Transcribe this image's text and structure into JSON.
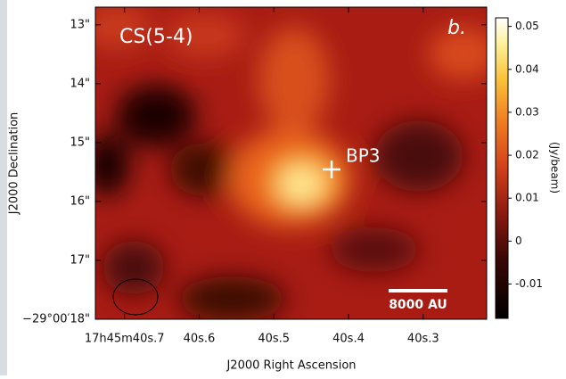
{
  "chart_data": {
    "type": "image",
    "title": "CS(5-4)",
    "panel_label": "b.",
    "source_label": "BP3",
    "scale_bar_label": "8000 AU",
    "x_label": "J2000 Right Ascension",
    "y_label": "J2000 Declination",
    "colorbar_label": "(Jy/beam)",
    "xlim": [
      40.739,
      40.215
    ],
    "xticks": [
      {
        "value": 40.7,
        "label": "17h45m40s.7"
      },
      {
        "value": 40.6,
        "label": "40s.6"
      },
      {
        "value": 40.5,
        "label": "40s.5"
      },
      {
        "value": 40.4,
        "label": "40s.4"
      },
      {
        "value": 40.3,
        "label": "40s.3"
      }
    ],
    "ylim": [
      12.7,
      18.0
    ],
    "yticks": [
      {
        "value": 13,
        "label": "13\""
      },
      {
        "value": 14,
        "label": "14\""
      },
      {
        "value": 15,
        "label": "15\""
      },
      {
        "value": 16,
        "label": "16\""
      },
      {
        "value": 17,
        "label": "17\""
      },
      {
        "value": 18,
        "label": "−29°00′18\""
      }
    ],
    "clim": [
      -0.018,
      0.052
    ],
    "cticks": [
      0.05,
      0.04,
      0.03,
      0.02,
      0.01,
      0,
      -0.01
    ]
  }
}
